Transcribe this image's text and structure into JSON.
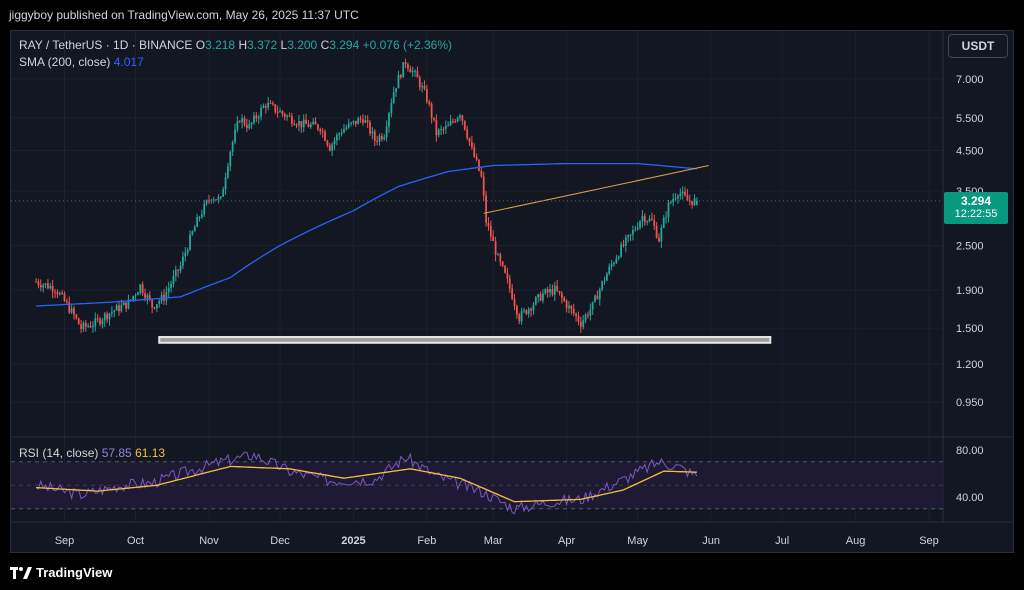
{
  "publisher": "jiggyboy published on TradingView.com, May 26, 2025 11:37 UTC",
  "legend": {
    "symbol": "RAY / TetherUS · 1D · BINANCE",
    "o_label": "O",
    "o": "3.218",
    "h_label": "H",
    "h": "3.372",
    "l_label": "L",
    "l": "3.200",
    "c_label": "C",
    "c": "3.294",
    "change": "+0.076 (+2.36%)",
    "sma_label": "SMA (200, close)",
    "sma_value": "4.017",
    "rsi_label": "RSI (14, close)",
    "rsi_value": "57.85",
    "rsi_ma_value": "61.13"
  },
  "currency_button": "USDT",
  "price_tag": {
    "value": "3.294",
    "countdown": "12:22:55"
  },
  "footer_logo": "TradingView",
  "colors": {
    "up": "#26a69a",
    "down": "#ef5350",
    "sma": "#2962ff",
    "trendline": "#e0a04a",
    "rsi": "#7e57c2",
    "rsi_ma": "#f0c23b",
    "band": "#e6e6e6"
  },
  "chart_data": {
    "type": "candlestick",
    "y_scale": "log",
    "price_ticks": [
      "7.000",
      "5.500",
      "4.500",
      "3.500",
      "2.500",
      "1.900",
      "1.500",
      "1.200",
      "0.950"
    ],
    "time_ticks": [
      "Sep",
      "Oct",
      "Nov",
      "Dec",
      "2025",
      "Feb",
      "Mar",
      "Apr",
      "May",
      "Jun",
      "Jul",
      "Aug",
      "Sep"
    ],
    "rsi_ticks": [
      "80.00",
      "40.00"
    ],
    "rsi_band": [
      30,
      70
    ],
    "close_anchors": [
      [
        "2024-08-20",
        2.0
      ],
      [
        "2024-08-28",
        1.92
      ],
      [
        "2024-09-05",
        1.62
      ],
      [
        "2024-09-08",
        1.5
      ],
      [
        "2024-09-14",
        1.55
      ],
      [
        "2024-09-20",
        1.65
      ],
      [
        "2024-09-28",
        1.75
      ],
      [
        "2024-10-03",
        1.95
      ],
      [
        "2024-10-08",
        1.72
      ],
      [
        "2024-10-13",
        1.82
      ],
      [
        "2024-10-20",
        2.2
      ],
      [
        "2024-10-28",
        3.0
      ],
      [
        "2024-11-02",
        3.4
      ],
      [
        "2024-11-06",
        3.3
      ],
      [
        "2024-11-10",
        4.5
      ],
      [
        "2024-11-14",
        5.5
      ],
      [
        "2024-11-18",
        5.2
      ],
      [
        "2024-11-25",
        6.0
      ],
      [
        "2024-12-03",
        5.6
      ],
      [
        "2024-12-10",
        5.3
      ],
      [
        "2024-12-18",
        5.2
      ],
      [
        "2024-12-22",
        4.6
      ],
      [
        "2024-12-27",
        5.1
      ],
      [
        "2025-01-05",
        5.5
      ],
      [
        "2025-01-10",
        4.8
      ],
      [
        "2025-01-14",
        5.0
      ],
      [
        "2025-01-18",
        6.5
      ],
      [
        "2025-01-23",
        7.8
      ],
      [
        "2025-01-28",
        7.0
      ],
      [
        "2025-02-01",
        6.2
      ],
      [
        "2025-02-05",
        5.0
      ],
      [
        "2025-02-10",
        5.2
      ],
      [
        "2025-02-15",
        5.7
      ],
      [
        "2025-02-20",
        4.5
      ],
      [
        "2025-02-24",
        3.8
      ],
      [
        "2025-02-26",
        2.9
      ],
      [
        "2025-03-03",
        2.3
      ],
      [
        "2025-03-07",
        2.0
      ],
      [
        "2025-03-12",
        1.6
      ],
      [
        "2025-03-16",
        1.7
      ],
      [
        "2025-03-22",
        1.85
      ],
      [
        "2025-03-27",
        1.9
      ],
      [
        "2025-04-02",
        1.7
      ],
      [
        "2025-04-07",
        1.55
      ],
      [
        "2025-04-12",
        1.72
      ],
      [
        "2025-04-18",
        2.1
      ],
      [
        "2025-04-23",
        2.4
      ],
      [
        "2025-04-28",
        2.65
      ],
      [
        "2025-05-03",
        3.0
      ],
      [
        "2025-05-07",
        2.9
      ],
      [
        "2025-05-10",
        2.6
      ],
      [
        "2025-05-14",
        3.2
      ],
      [
        "2025-05-18",
        3.5
      ],
      [
        "2025-05-22",
        3.3
      ],
      [
        "2025-05-26",
        3.294
      ]
    ],
    "sma_anchors": [
      [
        "2024-08-20",
        1.72
      ],
      [
        "2024-09-20",
        1.76
      ],
      [
        "2024-10-20",
        1.82
      ],
      [
        "2024-11-10",
        2.05
      ],
      [
        "2024-12-01",
        2.5
      ],
      [
        "2025-01-01",
        3.1
      ],
      [
        "2025-01-20",
        3.6
      ],
      [
        "2025-02-10",
        3.95
      ],
      [
        "2025-03-01",
        4.1
      ],
      [
        "2025-04-01",
        4.15
      ],
      [
        "2025-05-01",
        4.15
      ],
      [
        "2025-05-26",
        4.017
      ]
    ],
    "trendline": [
      [
        "2025-02-25",
        3.05
      ],
      [
        "2025-05-31",
        4.1
      ]
    ],
    "support_band": {
      "from": "2024-10-11",
      "to": "2025-06-26",
      "top": 1.42,
      "bottom": 1.37
    },
    "rsi_anchors": [
      [
        "2024-08-20",
        50
      ],
      [
        "2024-09-08",
        42
      ],
      [
        "2024-09-25",
        50
      ],
      [
        "2024-10-08",
        52
      ],
      [
        "2024-10-20",
        60
      ],
      [
        "2024-11-06",
        70
      ],
      [
        "2024-11-20",
        76
      ],
      [
        "2024-12-05",
        62
      ],
      [
        "2024-12-22",
        54
      ],
      [
        "2025-01-10",
        55
      ],
      [
        "2025-01-23",
        74
      ],
      [
        "2025-02-05",
        58
      ],
      [
        "2025-02-25",
        44
      ],
      [
        "2025-03-10",
        30
      ],
      [
        "2025-03-25",
        36
      ],
      [
        "2025-04-07",
        38
      ],
      [
        "2025-04-25",
        55
      ],
      [
        "2025-05-10",
        70
      ],
      [
        "2025-05-18",
        66
      ],
      [
        "2025-05-26",
        57.85
      ]
    ],
    "rsi_ma_anchors": [
      [
        "2024-08-20",
        48
      ],
      [
        "2024-09-15",
        45
      ],
      [
        "2024-10-10",
        50
      ],
      [
        "2024-11-10",
        66
      ],
      [
        "2024-12-05",
        64
      ],
      [
        "2024-12-28",
        56
      ],
      [
        "2025-01-25",
        64
      ],
      [
        "2025-02-15",
        56
      ],
      [
        "2025-03-10",
        36
      ],
      [
        "2025-04-07",
        38
      ],
      [
        "2025-04-25",
        46
      ],
      [
        "2025-05-12",
        62
      ],
      [
        "2025-05-26",
        61.13
      ]
    ]
  }
}
